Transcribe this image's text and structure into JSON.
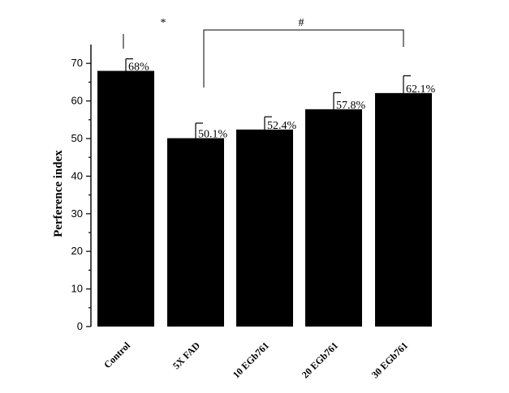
{
  "chart_data": {
    "type": "bar",
    "categories": [
      "Control",
      "5X FAD",
      "10 EGb761",
      "20 EGb761",
      "30 EGb761"
    ],
    "values": [
      68,
      50.1,
      52.4,
      57.8,
      62.1
    ],
    "errors": [
      3.2,
      4.0,
      3.4,
      4.4,
      4.6
    ],
    "data_labels": [
      "68%",
      "50.1%",
      "52.4%",
      "57.8%",
      "62.1%"
    ],
    "ylabel": "Perference index",
    "xlabel": "",
    "ylim": [
      0,
      75
    ],
    "yticks": [
      0,
      10,
      20,
      30,
      40,
      50,
      60,
      70
    ],
    "grid": false,
    "color": "#000000",
    "annotations": [
      {
        "text": "*",
        "between": [
          "Control",
          "5X FAD"
        ]
      },
      {
        "text": "#",
        "between": [
          "5X FAD",
          "30 EGb761"
        ]
      }
    ]
  }
}
